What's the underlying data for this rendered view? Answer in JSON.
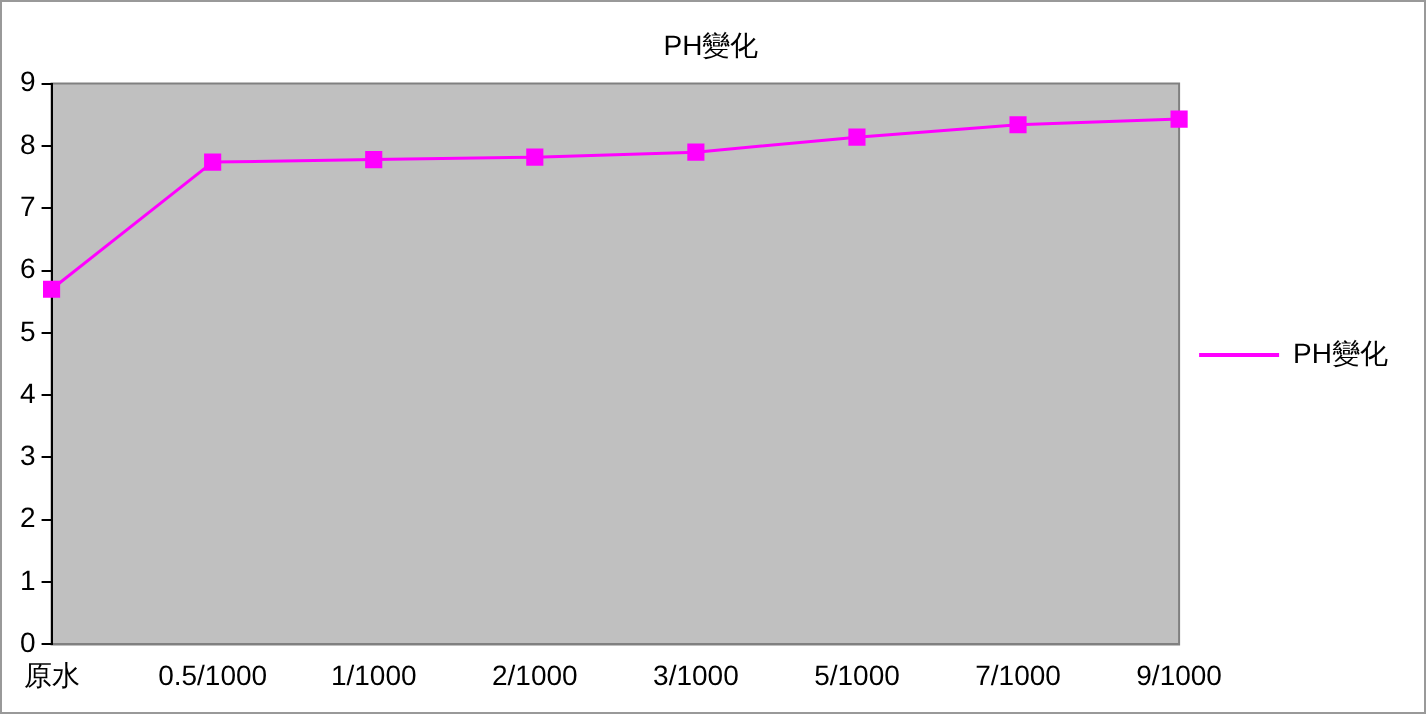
{
  "chart_data": {
    "type": "line",
    "title": "PH變化",
    "categories": [
      "原水",
      "0.5/1000",
      "1/1000",
      "2/1000",
      "3/1000",
      "5/1000",
      "7/1000",
      "9/1000"
    ],
    "series": [
      {
        "name": "PH變化",
        "color": "#ff00ff",
        "values": [
          5.7,
          7.74,
          7.78,
          7.82,
          7.9,
          8.14,
          8.34,
          8.43
        ]
      }
    ],
    "ylim": [
      0,
      9
    ],
    "yticks": [
      0,
      1,
      2,
      3,
      4,
      5,
      6,
      7,
      8,
      9
    ],
    "grid": false,
    "legend": "right",
    "marker": "square",
    "line_style": "solid"
  }
}
